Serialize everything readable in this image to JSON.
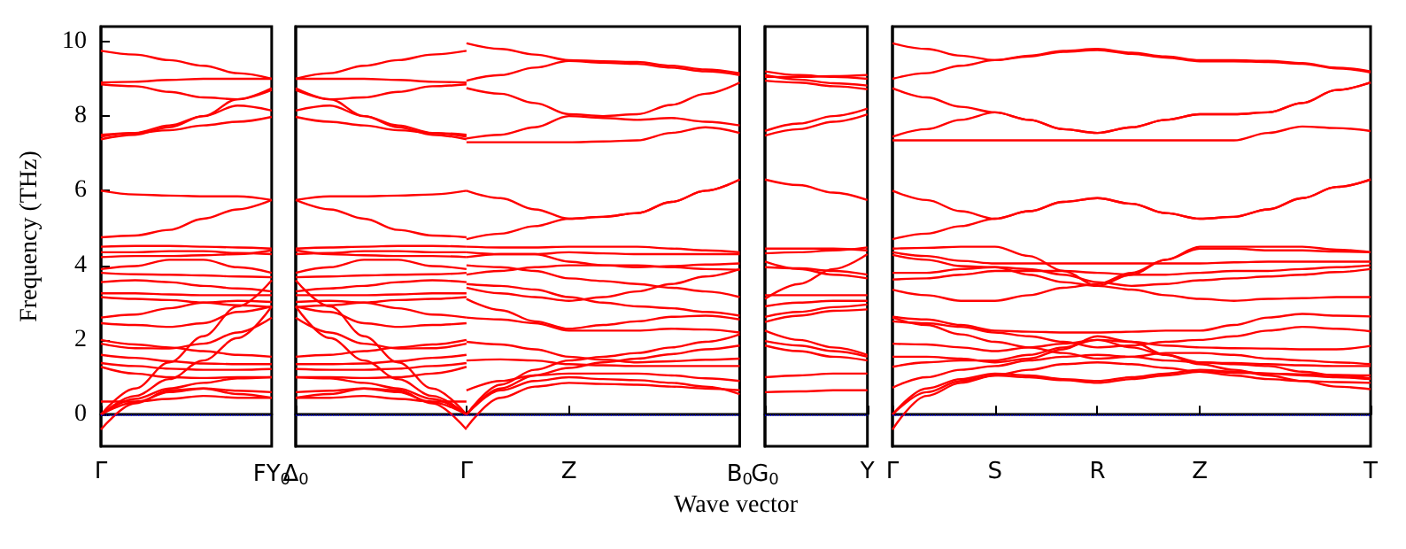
{
  "chart_data": [
    {
      "type": "line",
      "ylabel": "Frequency (THz)",
      "marker": "none",
      "ylim": [
        -0.85,
        10.4
      ],
      "yticks": [
        0,
        2,
        4,
        6,
        8,
        10
      ],
      "ref_lines": [
        {
          "axis": "y",
          "value": 0,
          "color": "#0000ff",
          "line_style": "dotted"
        }
      ],
      "categories": [
        "Γ",
        null,
        null,
        null,
        null,
        "FY$_{0}$"
      ],
      "series": [
        {
          "color": "#ff0000",
          "values": [
            9.75,
            9.65,
            9.5,
            9.35,
            9.15,
            9.0
          ]
        },
        {
          "color": "#ff0000",
          "values": [
            8.9,
            8.92,
            8.97,
            9.0,
            9.0,
            9.0
          ]
        },
        {
          "color": "#ff0000",
          "values": [
            8.85,
            8.8,
            8.65,
            8.5,
            8.45,
            8.7
          ]
        },
        {
          "color": "#ff0000",
          "values": [
            7.45,
            7.55,
            7.75,
            8.0,
            8.45,
            8.75
          ]
        },
        {
          "color": "#ff0000",
          "values": [
            7.38,
            7.5,
            7.7,
            8.0,
            8.28,
            8.15
          ]
        },
        {
          "color": "#ff0000",
          "values": [
            7.5,
            7.55,
            7.62,
            7.75,
            7.85,
            7.98
          ]
        },
        {
          "color": "#ff0000",
          "values": [
            6.0,
            5.9,
            5.87,
            5.85,
            5.85,
            5.75
          ]
        },
        {
          "color": "#ff0000",
          "values": [
            4.75,
            4.8,
            4.95,
            5.25,
            5.5,
            5.75
          ]
        },
        {
          "color": "#ff0000",
          "values": [
            4.5,
            4.52,
            4.52,
            4.5,
            4.48,
            4.45
          ]
        },
        {
          "color": "#ff0000",
          "values": [
            4.35,
            4.35,
            4.38,
            4.38,
            4.33,
            4.3
          ]
        },
        {
          "color": "#ff0000",
          "values": [
            4.22,
            4.25,
            4.25,
            4.27,
            4.3,
            4.4
          ]
        },
        {
          "color": "#ff0000",
          "values": [
            3.9,
            3.98,
            4.15,
            4.15,
            3.95,
            3.8
          ]
        },
        {
          "color": "#ff0000",
          "values": [
            3.8,
            3.76,
            3.75,
            3.73,
            3.7,
            3.68
          ]
        },
        {
          "color": "#ff0000",
          "values": [
            3.55,
            3.6,
            3.55,
            3.45,
            3.38,
            3.3
          ]
        },
        {
          "color": "#ff0000",
          "values": [
            3.25,
            3.25,
            3.22,
            3.2,
            3.2,
            3.2
          ]
        },
        {
          "color": "#ff0000",
          "values": [
            3.15,
            3.1,
            3.07,
            3.0,
            2.93,
            2.88
          ]
        },
        {
          "color": "#ff0000",
          "values": [
            2.6,
            2.68,
            2.85,
            3.0,
            3.05,
            3.02
          ]
        },
        {
          "color": "#ff0000",
          "values": [
            2.45,
            2.4,
            2.35,
            2.45,
            2.75,
            2.9
          ]
        },
        {
          "color": "#ff0000",
          "values": [
            2.0,
            1.88,
            1.8,
            1.7,
            1.6,
            1.55
          ]
        },
        {
          "color": "#ff0000",
          "values": [
            1.9,
            1.78,
            1.77,
            1.9,
            2.2,
            2.6
          ]
        },
        {
          "color": "#ff0000",
          "values": [
            0,
            0.7,
            1.4,
            2.1,
            2.9,
            3.6
          ]
        },
        {
          "color": "#ff0000",
          "values": [
            0,
            0.5,
            0.95,
            1.45,
            2.05,
            2.9
          ]
        },
        {
          "color": "#ff0000",
          "values": [
            1.6,
            1.52,
            1.43,
            1.37,
            1.35,
            1.35
          ]
        },
        {
          "color": "#ff0000",
          "values": [
            1.38,
            1.3,
            1.23,
            1.2,
            1.2,
            1.22
          ]
        },
        {
          "color": "#ff0000",
          "values": [
            1.28,
            1.1,
            1.0,
            0.98,
            1.0,
            1.0
          ]
        },
        {
          "color": "#ff0000",
          "values": [
            0,
            0.42,
            0.7,
            0.85,
            0.97,
            1.0
          ]
        },
        {
          "color": "#ff0000",
          "values": [
            0,
            0.33,
            0.6,
            0.7,
            0.64,
            0.6
          ]
        },
        {
          "color": "#ff0000",
          "values": [
            0.35,
            0.35,
            0.42,
            0.5,
            0.45,
            0.45
          ]
        },
        {
          "color": "#ff0000",
          "values": [
            -0.4,
            0.3,
            0.65,
            0.7,
            0.55,
            0.45
          ]
        }
      ]
    },
    {
      "type": "line",
      "xlabel": "Wave vector",
      "marker": "none",
      "tick_labels": "x",
      "ylim": [
        -0.85,
        10.4
      ],
      "yticks": [
        0,
        2,
        4,
        6,
        8,
        10
      ],
      "ref_lines": [
        {
          "axis": "y",
          "value": 0,
          "color": "#0000ff",
          "line_style": "dotted"
        }
      ],
      "categories": [
        "Δ$_{0}$",
        null,
        null,
        null,
        null,
        "Γ",
        null,
        null,
        "Z",
        null,
        null,
        null,
        null,
        "B$_{0}$"
      ],
      "series": [
        {
          "color": "#ff0000",
          "values": [
            9.0,
            9.15,
            9.35,
            9.5,
            9.65,
            9.75,
            null,
            null,
            null,
            null,
            null,
            null,
            null,
            null
          ]
        },
        {
          "color": "#ff0000",
          "values": [
            9.0,
            9.0,
            9.0,
            8.97,
            8.92,
            8.9,
            null,
            null,
            null,
            null,
            null,
            null,
            null,
            null
          ]
        },
        {
          "color": "#ff0000",
          "values": [
            8.7,
            8.45,
            8.5,
            8.65,
            8.8,
            8.85,
            null,
            null,
            null,
            null,
            null,
            null,
            null,
            null
          ]
        },
        {
          "color": "#ff0000",
          "values": [
            8.75,
            8.45,
            8.0,
            7.75,
            7.55,
            7.45,
            null,
            null,
            null,
            null,
            null,
            null,
            null,
            null
          ]
        },
        {
          "color": "#ff0000",
          "values": [
            8.15,
            8.28,
            8.0,
            7.7,
            7.5,
            7.38,
            null,
            null,
            null,
            null,
            null,
            null,
            null,
            null
          ]
        },
        {
          "color": "#ff0000",
          "values": [
            7.98,
            7.85,
            7.75,
            7.62,
            7.55,
            7.5,
            null,
            null,
            null,
            null,
            null,
            null,
            null,
            null
          ]
        },
        {
          "color": "#ff0000",
          "values": [
            5.75,
            5.85,
            5.85,
            5.87,
            5.9,
            6.0,
            null,
            null,
            null,
            null,
            null,
            null,
            null,
            null
          ]
        },
        {
          "color": "#ff0000",
          "values": [
            5.75,
            5.5,
            5.25,
            4.95,
            4.8,
            4.75,
            null,
            null,
            null,
            null,
            null,
            null,
            null,
            null
          ]
        },
        {
          "color": "#ff0000",
          "values": [
            4.45,
            4.48,
            4.5,
            4.52,
            4.52,
            4.5,
            null,
            null,
            null,
            null,
            null,
            null,
            null,
            null
          ]
        },
        {
          "color": "#ff0000",
          "values": [
            4.3,
            4.33,
            4.38,
            4.38,
            4.35,
            4.35,
            null,
            null,
            null,
            null,
            null,
            null,
            null,
            null
          ]
        },
        {
          "color": "#ff0000",
          "values": [
            4.4,
            4.3,
            4.27,
            4.25,
            4.25,
            4.22,
            null,
            null,
            null,
            null,
            null,
            null,
            null,
            null
          ]
        },
        {
          "color": "#ff0000",
          "values": [
            3.8,
            3.95,
            4.15,
            4.15,
            3.98,
            3.9,
            null,
            null,
            null,
            null,
            null,
            null,
            null,
            null
          ]
        },
        {
          "color": "#ff0000",
          "values": [
            3.68,
            3.7,
            3.73,
            3.75,
            3.76,
            3.8,
            null,
            null,
            null,
            null,
            null,
            null,
            null,
            null
          ]
        },
        {
          "color": "#ff0000",
          "values": [
            3.3,
            3.38,
            3.45,
            3.55,
            3.6,
            3.55,
            null,
            null,
            null,
            null,
            null,
            null,
            null,
            null
          ]
        },
        {
          "color": "#ff0000",
          "values": [
            3.2,
            3.2,
            3.2,
            3.22,
            3.25,
            3.25,
            null,
            null,
            null,
            null,
            null,
            null,
            null,
            null
          ]
        },
        {
          "color": "#ff0000",
          "values": [
            2.88,
            2.93,
            3.0,
            3.07,
            3.1,
            3.15,
            null,
            null,
            null,
            null,
            null,
            null,
            null,
            null
          ]
        },
        {
          "color": "#ff0000",
          "values": [
            3.02,
            3.05,
            3.0,
            2.85,
            2.68,
            2.6,
            null,
            null,
            null,
            null,
            null,
            null,
            null,
            null
          ]
        },
        {
          "color": "#ff0000",
          "values": [
            2.9,
            2.75,
            2.45,
            2.35,
            2.4,
            2.45,
            null,
            null,
            null,
            null,
            null,
            null,
            null,
            null
          ]
        },
        {
          "color": "#ff0000",
          "values": [
            1.55,
            1.6,
            1.7,
            1.8,
            1.88,
            2.0,
            null,
            null,
            null,
            null,
            null,
            null,
            null,
            null
          ]
        },
        {
          "color": "#ff0000",
          "values": [
            2.6,
            2.2,
            1.9,
            1.77,
            1.78,
            1.9,
            null,
            null,
            null,
            null,
            null,
            null,
            null,
            null
          ]
        },
        {
          "color": "#ff0000",
          "values": [
            3.6,
            2.9,
            2.1,
            1.4,
            0.7,
            0,
            null,
            null,
            null,
            null,
            null,
            null,
            null,
            null
          ]
        },
        {
          "color": "#ff0000",
          "values": [
            2.9,
            2.05,
            1.45,
            0.95,
            0.5,
            0,
            null,
            null,
            null,
            null,
            null,
            null,
            null,
            null
          ]
        },
        {
          "color": "#ff0000",
          "values": [
            1.35,
            1.35,
            1.37,
            1.43,
            1.52,
            1.6,
            null,
            null,
            null,
            null,
            null,
            null,
            null,
            null
          ]
        },
        {
          "color": "#ff0000",
          "values": [
            1.22,
            1.2,
            1.2,
            1.23,
            1.3,
            1.38,
            null,
            null,
            null,
            null,
            null,
            null,
            null,
            null
          ]
        },
        {
          "color": "#ff0000",
          "values": [
            1.0,
            1.0,
            0.98,
            1.0,
            1.1,
            1.28,
            null,
            null,
            null,
            null,
            null,
            null,
            null,
            null
          ]
        },
        {
          "color": "#ff0000",
          "values": [
            1.0,
            0.97,
            0.85,
            0.7,
            0.42,
            0,
            null,
            null,
            null,
            null,
            null,
            null,
            null,
            null
          ]
        },
        {
          "color": "#ff0000",
          "values": [
            0.6,
            0.64,
            0.7,
            0.6,
            0.33,
            0,
            null,
            null,
            null,
            null,
            null,
            null,
            null,
            null
          ]
        },
        {
          "color": "#ff0000",
          "values": [
            0.45,
            0.45,
            0.5,
            0.42,
            0.35,
            0.35,
            null,
            null,
            null,
            null,
            null,
            null,
            null,
            null
          ]
        },
        {
          "color": "#ff0000",
          "values": [
            0.45,
            0.55,
            0.7,
            0.65,
            0.3,
            -0.4,
            null,
            null,
            null,
            null,
            null,
            null,
            null,
            null
          ]
        },
        {
          "color": "#ff0000",
          "values": [
            null,
            null,
            null,
            null,
            null,
            9.95,
            9.8,
            9.65,
            9.5,
            9.47,
            9.45,
            9.35,
            9.25,
            9.15
          ]
        },
        {
          "color": "#ff0000",
          "values": [
            null,
            null,
            null,
            null,
            null,
            8.95,
            9.1,
            9.3,
            9.48,
            9.43,
            9.4,
            9.3,
            9.2,
            9.1
          ]
        },
        {
          "color": "#ff0000",
          "values": [
            null,
            null,
            null,
            null,
            null,
            8.75,
            8.6,
            8.35,
            8.05,
            8.0,
            8.05,
            8.3,
            8.6,
            8.9
          ]
        },
        {
          "color": "#ff0000",
          "values": [
            null,
            null,
            null,
            null,
            null,
            7.4,
            7.5,
            7.7,
            8.0,
            7.95,
            7.9,
            7.95,
            7.85,
            7.75
          ]
        },
        {
          "color": "#ff0000",
          "values": [
            null,
            null,
            null,
            null,
            null,
            7.3,
            7.3,
            7.3,
            7.3,
            7.32,
            7.35,
            7.55,
            7.7,
            7.55
          ]
        },
        {
          "color": "#ff0000",
          "values": [
            null,
            null,
            null,
            null,
            null,
            6.0,
            5.8,
            5.5,
            5.25,
            5.3,
            5.4,
            5.7,
            6.0,
            6.3
          ]
        },
        {
          "color": "#ff0000",
          "values": [
            null,
            null,
            null,
            null,
            null,
            4.7,
            4.85,
            5.05,
            5.25,
            5.3,
            5.4,
            5.7,
            6.0,
            6.3
          ]
        },
        {
          "color": "#ff0000",
          "values": [
            null,
            null,
            null,
            null,
            null,
            4.5,
            4.48,
            4.48,
            4.5,
            4.5,
            4.5,
            4.45,
            4.4,
            4.35
          ]
        },
        {
          "color": "#ff0000",
          "values": [
            null,
            null,
            null,
            null,
            null,
            4.35,
            4.3,
            4.3,
            4.35,
            4.32,
            4.3,
            4.3,
            4.3,
            4.3
          ]
        },
        {
          "color": "#ff0000",
          "values": [
            null,
            null,
            null,
            null,
            null,
            4.22,
            4.3,
            4.3,
            4.1,
            4.0,
            3.95,
            3.98,
            4.02,
            4.05
          ]
        },
        {
          "color": "#ff0000",
          "values": [
            null,
            null,
            null,
            null,
            null,
            3.75,
            3.85,
            3.95,
            4.0,
            4.0,
            4.0,
            3.95,
            3.9,
            3.88
          ]
        },
        {
          "color": "#ff0000",
          "values": [
            null,
            null,
            null,
            null,
            null,
            3.4,
            3.25,
            3.15,
            3.05,
            3.15,
            3.3,
            3.5,
            3.7,
            3.9
          ]
        },
        {
          "color": "#ff0000",
          "values": [
            null,
            null,
            null,
            null,
            null,
            4.0,
            3.95,
            3.85,
            3.65,
            3.58,
            3.5,
            3.4,
            3.3,
            3.15
          ]
        },
        {
          "color": "#ff0000",
          "values": [
            null,
            null,
            null,
            null,
            null,
            3.5,
            3.45,
            3.35,
            3.15,
            3.0,
            2.9,
            2.85,
            2.75,
            2.65
          ]
        },
        {
          "color": "#ff0000",
          "values": [
            null,
            null,
            null,
            null,
            null,
            3.1,
            2.8,
            2.5,
            2.3,
            2.4,
            2.5,
            2.62,
            2.65,
            2.55
          ]
        },
        {
          "color": "#ff0000",
          "values": [
            null,
            null,
            null,
            null,
            null,
            2.6,
            2.55,
            2.45,
            2.25,
            2.25,
            2.25,
            2.3,
            2.28,
            2.2
          ]
        },
        {
          "color": "#ff0000",
          "values": [
            null,
            null,
            null,
            null,
            null,
            1.95,
            1.88,
            1.75,
            1.55,
            1.47,
            1.4,
            1.43,
            1.47,
            1.5
          ]
        },
        {
          "color": "#ff0000",
          "values": [
            null,
            null,
            null,
            null,
            null,
            1.45,
            1.48,
            1.45,
            1.35,
            1.32,
            1.3,
            1.3,
            1.3,
            1.3
          ]
        },
        {
          "color": "#ff0000",
          "values": [
            null,
            null,
            null,
            null,
            null,
            0,
            0.8,
            1.2,
            1.45,
            1.55,
            1.65,
            1.8,
            1.95,
            2.15
          ]
        },
        {
          "color": "#ff0000",
          "values": [
            null,
            null,
            null,
            null,
            null,
            0,
            0.7,
            1.05,
            1.25,
            1.4,
            1.5,
            1.62,
            1.75,
            1.85
          ]
        },
        {
          "color": "#ff0000",
          "values": [
            null,
            null,
            null,
            null,
            null,
            0.65,
            0.9,
            1.05,
            1.1,
            1.1,
            1.1,
            1.05,
            0.97,
            0.9
          ]
        },
        {
          "color": "#ff0000",
          "values": [
            null,
            null,
            null,
            null,
            null,
            0,
            0.65,
            0.9,
            1.0,
            0.95,
            0.92,
            0.85,
            0.75,
            0.55
          ]
        },
        {
          "color": "#ff0000",
          "values": [
            null,
            null,
            null,
            null,
            null,
            -0.35,
            0.45,
            0.75,
            0.85,
            0.82,
            0.8,
            0.75,
            0.7,
            0.65
          ]
        }
      ]
    },
    {
      "type": "line",
      "marker": "none",
      "tick_labels": "x",
      "ylim": [
        -0.85,
        10.4
      ],
      "yticks": [
        0,
        2,
        4,
        6,
        8,
        10
      ],
      "ref_lines": [
        {
          "axis": "y",
          "value": 0,
          "color": "#0000ff",
          "line_style": "dotted"
        }
      ],
      "categories": [
        "G$_{0}$",
        null,
        null,
        "Y"
      ],
      "series": [
        {
          "color": "#ff0000",
          "values": [
            9.2,
            9.1,
            9.05,
            9.0
          ]
        },
        {
          "color": "#ff0000",
          "values": [
            9.05,
            9.05,
            9.07,
            9.1
          ]
        },
        {
          "color": "#ff0000",
          "values": [
            8.95,
            8.9,
            8.8,
            8.72
          ]
        },
        {
          "color": "#ff0000",
          "values": [
            9.1,
            8.98,
            8.88,
            8.82
          ]
        },
        {
          "color": "#ff0000",
          "values": [
            7.6,
            7.8,
            8.0,
            8.2
          ]
        },
        {
          "color": "#ff0000",
          "values": [
            7.48,
            7.65,
            7.85,
            8.05
          ]
        },
        {
          "color": "#ff0000",
          "values": [
            6.3,
            6.15,
            5.95,
            5.75
          ]
        },
        {
          "color": "#ff0000",
          "values": [
            4.45,
            4.45,
            4.45,
            4.4
          ]
        },
        {
          "color": "#ff0000",
          "values": [
            4.32,
            4.35,
            4.4,
            4.48
          ]
        },
        {
          "color": "#ff0000",
          "values": [
            3.1,
            3.5,
            3.9,
            4.3
          ]
        },
        {
          "color": "#ff0000",
          "values": [
            4.1,
            3.9,
            3.75,
            3.65
          ]
        },
        {
          "color": "#ff0000",
          "values": [
            3.95,
            3.92,
            3.85,
            3.75
          ]
        },
        {
          "color": "#ff0000",
          "values": [
            3.2,
            3.2,
            3.2,
            3.2
          ]
        },
        {
          "color": "#ff0000",
          "values": [
            2.9,
            3.0,
            3.05,
            3.05
          ]
        },
        {
          "color": "#ff0000",
          "values": [
            2.62,
            2.75,
            2.88,
            2.95
          ]
        },
        {
          "color": "#ff0000",
          "values": [
            2.48,
            2.65,
            2.78,
            2.82
          ]
        },
        {
          "color": "#ff0000",
          "values": [
            2.25,
            2.0,
            1.8,
            1.6
          ]
        },
        {
          "color": "#ff0000",
          "values": [
            1.85,
            1.7,
            1.55,
            1.45
          ]
        },
        {
          "color": "#ff0000",
          "values": [
            1.97,
            1.85,
            1.7,
            1.55
          ]
        },
        {
          "color": "#ff0000",
          "values": [
            1.0,
            1.05,
            1.1,
            1.1
          ]
        },
        {
          "color": "#ff0000",
          "values": [
            0.6,
            0.62,
            0.65,
            0.65
          ]
        }
      ]
    },
    {
      "type": "line",
      "marker": "none",
      "tick_labels": "x",
      "ylim": [
        -0.85,
        10.4
      ],
      "yticks": [
        0,
        2,
        4,
        6,
        8,
        10
      ],
      "ref_lines": [
        {
          "axis": "y",
          "value": 0,
          "color": "#0000ff",
          "line_style": "dotted"
        }
      ],
      "categories": [
        "Γ",
        null,
        null,
        "S",
        null,
        null,
        "R",
        null,
        null,
        "Z",
        null,
        null,
        null,
        null,
        "T"
      ],
      "series": [
        {
          "color": "#ff0000",
          "values": [
            9.95,
            9.8,
            9.62,
            9.5,
            9.62,
            9.75,
            9.8,
            9.7,
            9.6,
            9.5,
            9.5,
            9.48,
            9.42,
            9.3,
            9.2
          ]
        },
        {
          "color": "#ff0000",
          "values": [
            9.0,
            9.15,
            9.35,
            9.5,
            9.6,
            9.72,
            9.77,
            9.67,
            9.57,
            9.47,
            9.47,
            9.45,
            9.4,
            9.28,
            9.17
          ]
        },
        {
          "color": "#ff0000",
          "values": [
            8.75,
            8.5,
            8.25,
            8.1,
            7.9,
            7.65,
            7.55,
            7.7,
            7.9,
            8.05,
            8.05,
            8.1,
            8.35,
            8.7,
            8.9
          ]
        },
        {
          "color": "#ff0000",
          "values": [
            7.45,
            7.65,
            7.9,
            8.1,
            7.9,
            7.65,
            7.55,
            7.7,
            7.9,
            8.05,
            8.05,
            8.1,
            8.35,
            8.7,
            8.9
          ]
        },
        {
          "color": "#ff0000",
          "values": [
            7.35,
            7.35,
            7.35,
            7.35,
            7.35,
            7.35,
            7.35,
            7.35,
            7.35,
            7.35,
            7.35,
            7.55,
            7.72,
            7.68,
            7.6
          ]
        },
        {
          "color": "#ff0000",
          "values": [
            6.0,
            5.75,
            5.45,
            5.25,
            5.45,
            5.7,
            5.8,
            5.65,
            5.4,
            5.25,
            5.3,
            5.5,
            5.8,
            6.1,
            6.3
          ]
        },
        {
          "color": "#ff0000",
          "values": [
            4.7,
            4.85,
            5.05,
            5.25,
            5.45,
            5.7,
            5.8,
            5.65,
            5.4,
            5.25,
            5.3,
            5.5,
            5.8,
            6.1,
            6.3
          ]
        },
        {
          "color": "#ff0000",
          "values": [
            4.45,
            4.47,
            4.5,
            4.5,
            4.25,
            3.85,
            3.45,
            3.75,
            4.15,
            4.5,
            4.5,
            4.5,
            4.5,
            4.42,
            4.35
          ]
        },
        {
          "color": "#ff0000",
          "values": [
            4.35,
            4.25,
            4.12,
            4.05,
            4.05,
            4.05,
            4.05,
            4.05,
            4.05,
            4.05,
            4.08,
            4.1,
            4.1,
            4.1,
            4.1
          ]
        },
        {
          "color": "#ff0000",
          "values": [
            4.28,
            4.15,
            3.98,
            3.95,
            3.9,
            3.75,
            3.55,
            3.45,
            3.5,
            3.6,
            3.65,
            3.7,
            3.75,
            3.82,
            3.9
          ]
        },
        {
          "color": "#ff0000",
          "values": [
            3.8,
            3.8,
            3.9,
            3.95,
            3.75,
            3.55,
            3.45,
            3.35,
            3.2,
            3.1,
            3.05,
            3.1,
            3.12,
            3.15,
            3.15
          ]
        },
        {
          "color": "#ff0000",
          "values": [
            3.62,
            3.65,
            3.75,
            3.85,
            3.85,
            3.85,
            3.8,
            3.75,
            3.75,
            3.8,
            3.85,
            3.85,
            3.9,
            3.95,
            4.0
          ]
        },
        {
          "color": "#ff0000",
          "values": [
            3.35,
            3.2,
            3.05,
            3.05,
            3.2,
            3.4,
            3.5,
            3.8,
            4.15,
            4.45,
            4.45,
            4.4,
            4.4,
            4.37,
            4.35
          ]
        },
        {
          "color": "#ff0000",
          "values": [
            2.62,
            2.55,
            2.4,
            2.25,
            2.22,
            2.2,
            2.2,
            2.22,
            2.25,
            2.25,
            2.4,
            2.6,
            2.7,
            2.65,
            2.63
          ]
        },
        {
          "color": "#ff0000",
          "values": [
            2.6,
            2.4,
            2.15,
            1.95,
            1.8,
            1.65,
            1.5,
            1.55,
            1.65,
            1.65,
            1.6,
            1.5,
            1.45,
            1.4,
            1.35
          ]
        },
        {
          "color": "#ff0000",
          "values": [
            2.5,
            2.45,
            2.35,
            2.2,
            2.1,
            1.95,
            1.8,
            1.85,
            1.95,
            2.0,
            2.1,
            2.25,
            2.35,
            2.3,
            2.23
          ]
        },
        {
          "color": "#ff0000",
          "values": [
            1.9,
            1.88,
            1.8,
            1.7,
            1.8,
            1.9,
            2.0,
            1.95,
            1.85,
            1.8,
            1.78,
            1.77,
            1.75,
            1.75,
            1.84
          ]
        },
        {
          "color": "#ff0000",
          "values": [
            1.55,
            1.55,
            1.5,
            1.4,
            1.5,
            1.75,
            2.1,
            1.95,
            1.6,
            1.4,
            1.35,
            1.3,
            1.15,
            1.05,
            0.97
          ]
        },
        {
          "color": "#ff0000",
          "values": [
            1.28,
            1.4,
            1.45,
            1.45,
            1.6,
            1.8,
            2.0,
            1.8,
            1.6,
            1.35,
            1.2,
            1.05,
            0.9,
            0.75,
            0.68
          ]
        },
        {
          "color": "#ff0000",
          "values": [
            0,
            0.7,
            0.95,
            1.1,
            1.05,
            0.95,
            0.9,
            1.0,
            1.1,
            1.2,
            1.15,
            1.1,
            1.05,
            1.0,
            0.95
          ]
        },
        {
          "color": "#ff0000",
          "values": [
            0,
            0.6,
            0.9,
            1.05,
            1.2,
            1.35,
            1.4,
            1.35,
            1.25,
            1.15,
            1.12,
            1.1,
            1.08,
            1.06,
            1.05
          ]
        },
        {
          "color": "#ff0000",
          "values": [
            0.72,
            1.0,
            1.2,
            1.3,
            1.45,
            1.55,
            1.6,
            1.55,
            1.45,
            1.4,
            1.38,
            1.35,
            1.32,
            1.3,
            1.3
          ]
        },
        {
          "color": "#ff0000",
          "values": [
            -0.4,
            0.5,
            0.85,
            1.05,
            1.0,
            0.92,
            0.85,
            0.95,
            1.05,
            1.15,
            1.05,
            0.95,
            0.9,
            0.87,
            0.85
          ]
        }
      ]
    }
  ]
}
